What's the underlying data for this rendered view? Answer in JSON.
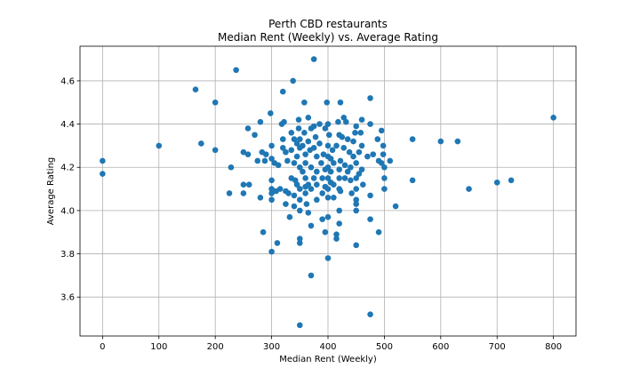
{
  "chart_data": {
    "type": "scatter",
    "title": "Perth CBD restaurants",
    "subtitle": "Median Rent (Weekly) vs. Average Rating",
    "xlabel": "Median Rent (Weekly)",
    "ylabel": "Average Rating",
    "xlim": [
      -40,
      840
    ],
    "ylim": [
      3.42,
      4.76
    ],
    "xticks": [
      0,
      100,
      200,
      300,
      400,
      500,
      600,
      700,
      800
    ],
    "yticks": [
      3.6,
      3.8,
      4.0,
      4.2,
      4.4,
      4.6
    ],
    "ytick_labels": [
      "3.6",
      "3.8",
      "4.0",
      "4.2",
      "4.4",
      "4.6"
    ],
    "grid": true,
    "marker_color": "#1f77b4",
    "points": [
      [
        0,
        4.23
      ],
      [
        0,
        4.17
      ],
      [
        100,
        4.3
      ],
      [
        165,
        4.56
      ],
      [
        175,
        4.31
      ],
      [
        200,
        4.5
      ],
      [
        200,
        4.28
      ],
      [
        225,
        4.08
      ],
      [
        228,
        4.2
      ],
      [
        237,
        4.65
      ],
      [
        250,
        4.27
      ],
      [
        250,
        4.12
      ],
      [
        250,
        4.08
      ],
      [
        258,
        4.38
      ],
      [
        258,
        4.26
      ],
      [
        260,
        4.12
      ],
      [
        270,
        4.35
      ],
      [
        275,
        4.23
      ],
      [
        280,
        4.06
      ],
      [
        280,
        4.41
      ],
      [
        283,
        4.27
      ],
      [
        285,
        3.9
      ],
      [
        288,
        4.23
      ],
      [
        290,
        4.26
      ],
      [
        298,
        4.45
      ],
      [
        300,
        4.3
      ],
      [
        300,
        4.24
      ],
      [
        300,
        4.14
      ],
      [
        300,
        4.1
      ],
      [
        300,
        4.08
      ],
      [
        300,
        4.05
      ],
      [
        300,
        3.81
      ],
      [
        305,
        4.22
      ],
      [
        308,
        4.09
      ],
      [
        310,
        3.85
      ],
      [
        312,
        4.21
      ],
      [
        315,
        4.1
      ],
      [
        318,
        4.4
      ],
      [
        320,
        4.55
      ],
      [
        320,
        4.33
      ],
      [
        320,
        4.29
      ],
      [
        322,
        4.41
      ],
      [
        325,
        4.27
      ],
      [
        325,
        4.09
      ],
      [
        325,
        4.03
      ],
      [
        328,
        4.23
      ],
      [
        330,
        4.08
      ],
      [
        332,
        3.97
      ],
      [
        335,
        4.36
      ],
      [
        335,
        4.28
      ],
      [
        335,
        4.15
      ],
      [
        338,
        4.6
      ],
      [
        340,
        4.33
      ],
      [
        340,
        4.22
      ],
      [
        340,
        4.07
      ],
      [
        340,
        4.02
      ],
      [
        342,
        4.14
      ],
      [
        345,
        4.31
      ],
      [
        345,
        4.25
      ],
      [
        345,
        4.12
      ],
      [
        348,
        4.42
      ],
      [
        348,
        4.38
      ],
      [
        350,
        4.33
      ],
      [
        350,
        4.29
      ],
      [
        350,
        4.2
      ],
      [
        350,
        4.1
      ],
      [
        350,
        4.05
      ],
      [
        350,
        4.0
      ],
      [
        350,
        3.87
      ],
      [
        350,
        3.85
      ],
      [
        350,
        3.47
      ],
      [
        355,
        4.3
      ],
      [
        355,
        4.18
      ],
      [
        358,
        4.5
      ],
      [
        358,
        4.36
      ],
      [
        360,
        4.26
      ],
      [
        360,
        4.22
      ],
      [
        360,
        4.15
      ],
      [
        360,
        4.11
      ],
      [
        360,
        4.08
      ],
      [
        362,
        4.03
      ],
      [
        365,
        4.43
      ],
      [
        365,
        4.32
      ],
      [
        365,
        4.12
      ],
      [
        365,
        3.99
      ],
      [
        368,
        4.28
      ],
      [
        370,
        4.38
      ],
      [
        370,
        4.2
      ],
      [
        370,
        4.1
      ],
      [
        370,
        3.93
      ],
      [
        370,
        3.7
      ],
      [
        375,
        4.7
      ],
      [
        375,
        4.39
      ],
      [
        375,
        4.29
      ],
      [
        375,
        4.15
      ],
      [
        378,
        4.34
      ],
      [
        380,
        4.25
      ],
      [
        380,
        4.18
      ],
      [
        380,
        4.12
      ],
      [
        380,
        4.05
      ],
      [
        385,
        4.4
      ],
      [
        385,
        4.31
      ],
      [
        388,
        4.22
      ],
      [
        390,
        4.15
      ],
      [
        390,
        4.08
      ],
      [
        390,
        3.96
      ],
      [
        392,
        4.26
      ],
      [
        395,
        4.38
      ],
      [
        395,
        4.19
      ],
      [
        395,
        4.11
      ],
      [
        395,
        3.9
      ],
      [
        398,
        4.5
      ],
      [
        400,
        4.4
      ],
      [
        400,
        4.3
      ],
      [
        400,
        4.25
      ],
      [
        400,
        4.2
      ],
      [
        400,
        4.15
      ],
      [
        400,
        4.1
      ],
      [
        400,
        4.06
      ],
      [
        400,
        3.97
      ],
      [
        400,
        3.78
      ],
      [
        402,
        4.35
      ],
      [
        405,
        4.24
      ],
      [
        405,
        4.18
      ],
      [
        405,
        4.13
      ],
      [
        408,
        4.28
      ],
      [
        410,
        4.22
      ],
      [
        410,
        4.12
      ],
      [
        410,
        4.06
      ],
      [
        415,
        4.3
      ],
      [
        415,
        3.89
      ],
      [
        415,
        3.87
      ],
      [
        418,
        4.41
      ],
      [
        420,
        4.35
      ],
      [
        420,
        4.19
      ],
      [
        420,
        4.15
      ],
      [
        420,
        4.1
      ],
      [
        420,
        4.0
      ],
      [
        420,
        3.94
      ],
      [
        422,
        4.5
      ],
      [
        422,
        4.23
      ],
      [
        422,
        4.09
      ],
      [
        425,
        4.34
      ],
      [
        428,
        4.43
      ],
      [
        428,
        4.29
      ],
      [
        430,
        4.21
      ],
      [
        430,
        4.15
      ],
      [
        432,
        4.41
      ],
      [
        435,
        4.33
      ],
      [
        435,
        4.18
      ],
      [
        438,
        4.27
      ],
      [
        440,
        4.2
      ],
      [
        440,
        4.14
      ],
      [
        442,
        4.08
      ],
      [
        445,
        4.32
      ],
      [
        445,
        4.25
      ],
      [
        448,
        4.36
      ],
      [
        450,
        4.39
      ],
      [
        450,
        4.22
      ],
      [
        450,
        4.15
      ],
      [
        450,
        4.1
      ],
      [
        450,
        4.05
      ],
      [
        450,
        4.03
      ],
      [
        450,
        4.0
      ],
      [
        450,
        3.84
      ],
      [
        455,
        4.27
      ],
      [
        455,
        4.17
      ],
      [
        458,
        4.36
      ],
      [
        460,
        4.42
      ],
      [
        460,
        4.3
      ],
      [
        460,
        4.19
      ],
      [
        462,
        4.12
      ],
      [
        470,
        4.25
      ],
      [
        475,
        4.52
      ],
      [
        475,
        4.4
      ],
      [
        475,
        4.07
      ],
      [
        475,
        3.96
      ],
      [
        475,
        3.52
      ],
      [
        480,
        4.26
      ],
      [
        488,
        4.33
      ],
      [
        490,
        4.23
      ],
      [
        490,
        3.9
      ],
      [
        495,
        4.37
      ],
      [
        495,
        4.22
      ],
      [
        498,
        4.3
      ],
      [
        498,
        4.26
      ],
      [
        500,
        4.2
      ],
      [
        500,
        4.15
      ],
      [
        500,
        4.1
      ],
      [
        510,
        4.23
      ],
      [
        520,
        4.02
      ],
      [
        550,
        4.33
      ],
      [
        550,
        4.14
      ],
      [
        600,
        4.32
      ],
      [
        630,
        4.32
      ],
      [
        650,
        4.1
      ],
      [
        700,
        4.13
      ],
      [
        725,
        4.14
      ],
      [
        800,
        4.43
      ]
    ]
  }
}
